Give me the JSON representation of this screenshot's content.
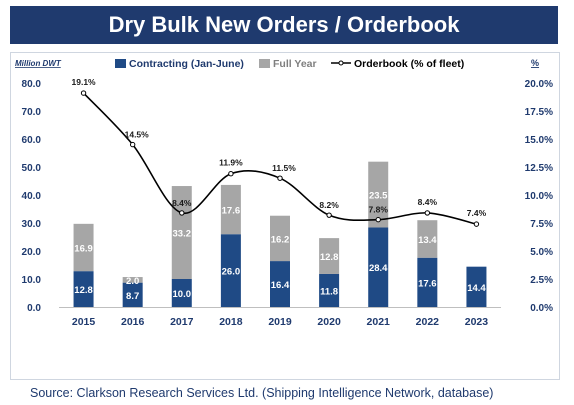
{
  "title": "Dry Bulk New Orders / Orderbook",
  "source": "Source: Clarkson Research Services Ltd. (Shipping Intelligence Network, database)",
  "colors": {
    "title_bg": "#1f3a6e",
    "contracting": "#1f4a85",
    "full_year": "#a6a6a6",
    "orderbook_line": "#000000",
    "axis_text": "#1f3a6e"
  },
  "chart_data": {
    "type": "bar",
    "stacked": true,
    "categories": [
      "2015",
      "2016",
      "2017",
      "2018",
      "2019",
      "2020",
      "2021",
      "2022",
      "2023"
    ],
    "ylabel_left": "Million DWT",
    "ylabel_right": "%",
    "ylim_left": [
      0,
      80
    ],
    "yticks_left": [
      "0.0",
      "10.0",
      "20.0",
      "30.0",
      "40.0",
      "50.0",
      "60.0",
      "70.0",
      "80.0"
    ],
    "ylim_right": [
      0,
      20
    ],
    "yticks_right": [
      "0.0%",
      "2.5%",
      "5.0%",
      "7.5%",
      "10.0%",
      "12.5%",
      "15.0%",
      "17.5%",
      "20.0%"
    ],
    "legend_position": "top",
    "series": [
      {
        "name": "Contracting (Jan-June)",
        "kind": "bar",
        "values": [
          12.8,
          8.7,
          10.0,
          26.0,
          16.4,
          11.8,
          28.4,
          17.6,
          14.4
        ],
        "labels": [
          "12.8",
          "8.7",
          "10.0",
          "26.0",
          "16.4",
          "11.8",
          "28.4",
          "17.6",
          "14.4"
        ]
      },
      {
        "name": "Full Year",
        "kind": "bar",
        "values": [
          16.9,
          2.0,
          33.2,
          17.6,
          16.2,
          12.8,
          23.5,
          13.4,
          null
        ],
        "labels": [
          "16.9",
          "2.0",
          "33.2",
          "17.6",
          "16.2",
          "12.8",
          "23.5",
          "13.4",
          ""
        ]
      },
      {
        "name": "Orderbook (% of fleet)",
        "kind": "line",
        "axis": "right",
        "values": [
          19.1,
          14.5,
          8.4,
          11.9,
          11.5,
          8.2,
          7.8,
          8.4,
          7.4
        ],
        "labels": [
          "19.1%",
          "14.5%",
          "8.4%",
          "11.9%",
          "11.5%",
          "8.2%",
          "7.8%",
          "8.4%",
          "7.4%"
        ]
      }
    ]
  }
}
